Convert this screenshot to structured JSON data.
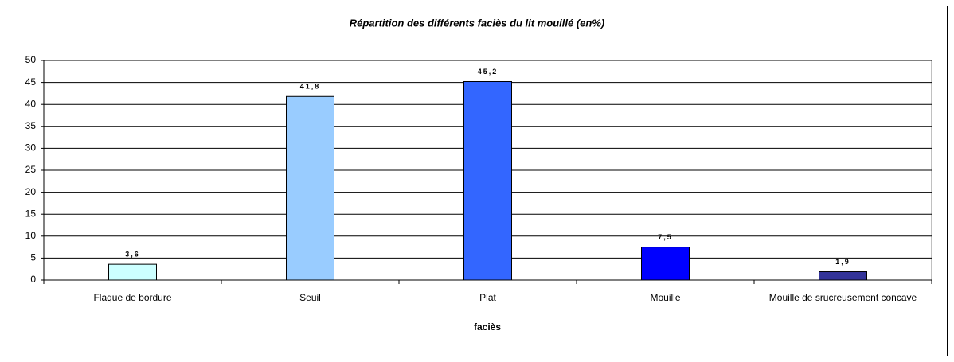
{
  "chart_data": {
    "type": "bar",
    "title": "Répartition des différents faciès du lit mouillé (en%)",
    "x_label": "faciès",
    "categories": [
      "Flaque de bordure",
      "Seuil",
      "Plat",
      "Mouille",
      "Mouille de srucreusement concave"
    ],
    "values": [
      3.6,
      41.8,
      45.2,
      7.5,
      1.9
    ],
    "value_labels": [
      "3,6",
      "41,8",
      "45,2",
      "7,5",
      "1,9"
    ],
    "colors": [
      "#ccffff",
      "#99ccff",
      "#3366ff",
      "#0000ff",
      "#333399"
    ],
    "ylim": [
      0,
      50
    ],
    "yticks": [
      0,
      5,
      10,
      15,
      20,
      25,
      30,
      35,
      40,
      45,
      50
    ],
    "grid": true
  }
}
